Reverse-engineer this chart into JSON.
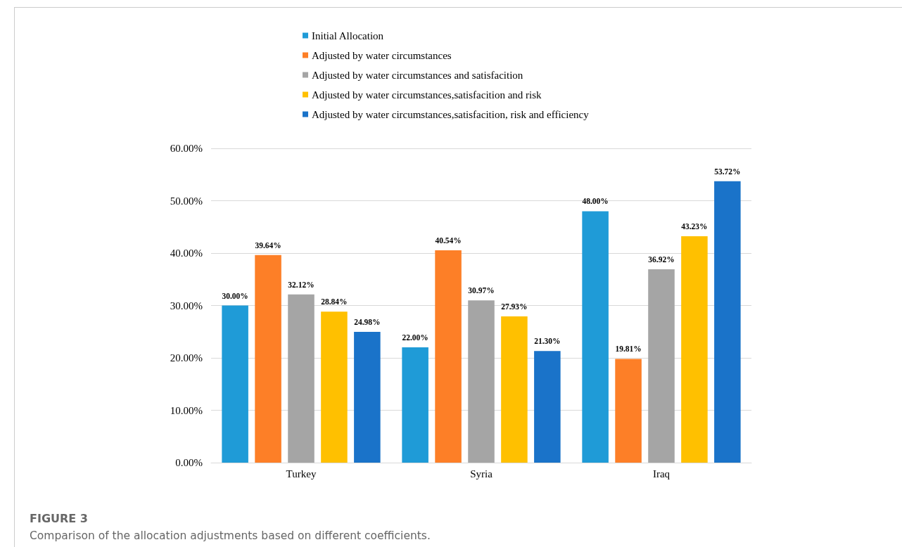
{
  "chart_data": {
    "type": "bar",
    "categories": [
      "Turkey",
      "Syria",
      "Iraq"
    ],
    "series": [
      {
        "name": "Initial Allocation",
        "color": "#1f9bd7",
        "values": [
          30.0,
          22.0,
          48.0
        ],
        "value_labels": [
          "30.00%",
          "22.00%",
          "48.00%"
        ]
      },
      {
        "name": "Adjusted by water circumstances",
        "color": "#fd7f27",
        "values": [
          39.64,
          40.54,
          19.81
        ],
        "value_labels": [
          "39.64%",
          "40.54%",
          "19.81%"
        ]
      },
      {
        "name": "Adjusted by water circumstances and satisfacition",
        "color": "#a5a5a5",
        "values": [
          32.12,
          30.97,
          36.92
        ],
        "value_labels": [
          "32.12%",
          "30.97%",
          "36.92%"
        ]
      },
      {
        "name": "Adjusted by water circumstances,satisfacition and risk",
        "color": "#ffc000",
        "values": [
          28.84,
          27.93,
          43.23
        ],
        "value_labels": [
          "28.84%",
          "27.93%",
          "43.23%"
        ]
      },
      {
        "name": "Adjusted by water circumstances,satisfacition, risk and efficiency",
        "color": "#1a73c9",
        "values": [
          24.98,
          21.3,
          53.72
        ],
        "value_labels": [
          "24.98%",
          "21.30%",
          "53.72%"
        ]
      }
    ],
    "ylim": [
      0,
      60
    ],
    "yticks": [
      {
        "value": 0,
        "label": "0.00%"
      },
      {
        "value": 10,
        "label": "10.00%"
      },
      {
        "value": 20,
        "label": "20.00%"
      },
      {
        "value": 30,
        "label": "30.00%"
      },
      {
        "value": 40,
        "label": "40.00%"
      },
      {
        "value": 50,
        "label": "50.00%"
      },
      {
        "value": 60,
        "label": "60.00%"
      }
    ],
    "grid": "y",
    "legend": "top",
    "annotations": [
      "FIGURE 3",
      "Comparison of the allocation adjustments based on different coefficients."
    ]
  }
}
